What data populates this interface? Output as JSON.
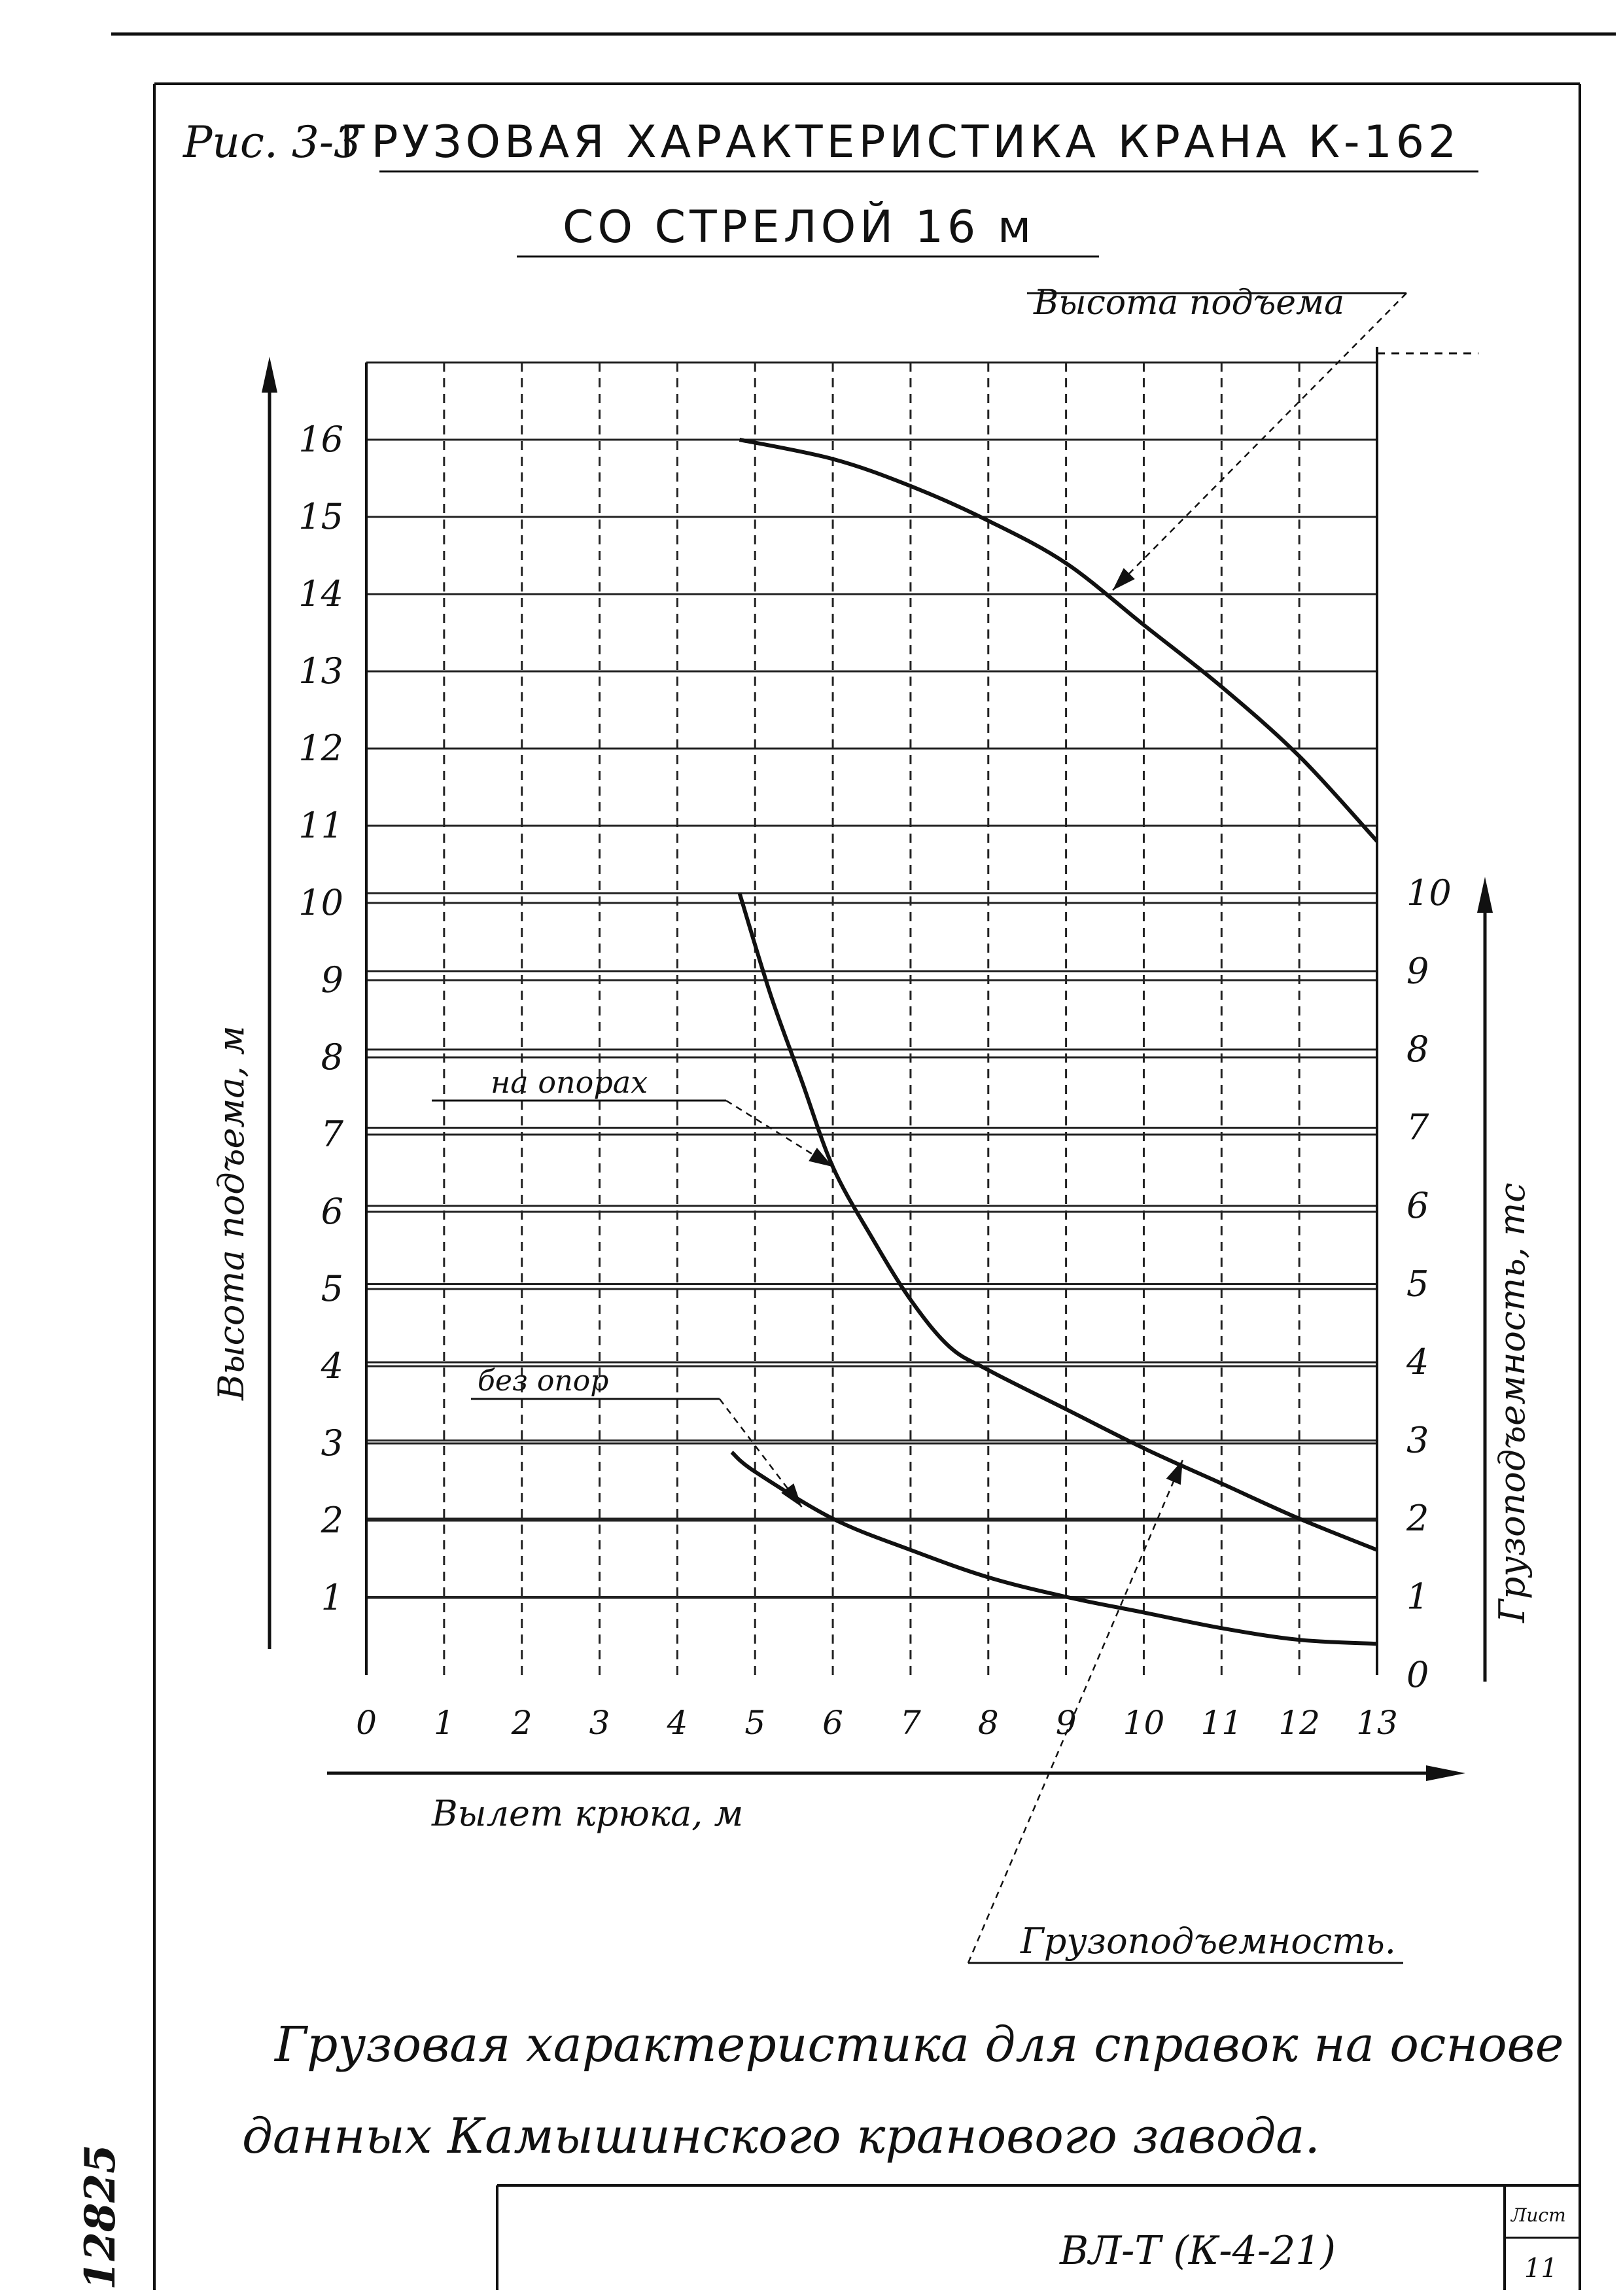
{
  "figure": {
    "label": "Рис. 3-3",
    "title_line1": "ГРУЗОВАЯ ХАРАКТЕРИСТИКА КРАНА К-162",
    "title_line2": "СО СТРЕЛОЙ 16 м"
  },
  "chart_data": {
    "type": "line",
    "xlabel": "Вылет крюка, м",
    "ylabel_left": "Высота подъема, м",
    "ylabel_right": "Грузоподъемность, тс",
    "x_ticks": [
      "0",
      "1",
      "2",
      "3",
      "4",
      "5",
      "6",
      "7",
      "8",
      "9",
      "10",
      "11",
      "12",
      "13"
    ],
    "y_left_ticks": [
      "1",
      "2",
      "3",
      "4",
      "5",
      "6",
      "7",
      "8",
      "9",
      "10",
      "11",
      "12",
      "13",
      "14",
      "15",
      "16"
    ],
    "y_right_ticks": [
      "0",
      "1",
      "2",
      "3",
      "4",
      "5",
      "6",
      "7",
      "8",
      "9",
      "10"
    ],
    "xlim": [
      0,
      13
    ],
    "ylim_left": [
      0,
      17
    ],
    "ylim_right": [
      0,
      10
    ],
    "grid": true,
    "series": [
      {
        "name": "Высота подъема",
        "axis": "left",
        "x": [
          4.8,
          6,
          7,
          8,
          9,
          10,
          11,
          12,
          13
        ],
        "y": [
          16,
          15.75,
          15.4,
          14.95,
          14.4,
          13.6,
          12.8,
          11.9,
          10.8
        ]
      },
      {
        "name": "на опорах",
        "axis": "right",
        "x": [
          4.8,
          5.2,
          5.6,
          6,
          6.5,
          7,
          7.5,
          8,
          9,
          10,
          11,
          12,
          13
        ],
        "y": [
          10,
          8.7,
          7.6,
          6.5,
          5.6,
          4.8,
          4.2,
          3.9,
          3.4,
          2.9,
          2.45,
          2.0,
          1.6
        ]
      },
      {
        "name": "без опор",
        "axis": "right",
        "x": [
          4.7,
          5,
          6,
          7,
          8,
          9,
          10,
          11,
          12,
          13
        ],
        "y": [
          2.85,
          2.6,
          2.0,
          1.6,
          1.25,
          1.0,
          0.8,
          0.6,
          0.45,
          0.4
        ]
      }
    ],
    "annotations": [
      "Высота подъема",
      "на опорах",
      "без опор",
      "Грузоподъемность."
    ]
  },
  "note": {
    "line1": "Грузовая характеристика для справок на основе",
    "line2": "данных Камышинского кранового завода."
  },
  "stamp": {
    "code": "ВЛ-Т (К-4-21)",
    "sheet_label": "Лист",
    "sheet_number": "11"
  },
  "margin_number": "12825"
}
